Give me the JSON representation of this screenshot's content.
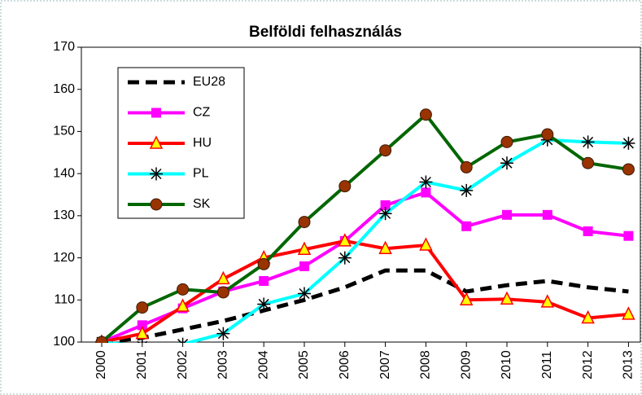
{
  "chart_data": {
    "type": "line",
    "title": "Belföldi felhasználás",
    "categories": [
      "2000",
      "2001",
      "2002",
      "2003",
      "2004",
      "2005",
      "2006",
      "2007",
      "2008",
      "2009",
      "2010",
      "2011",
      "2012",
      "2013"
    ],
    "ylim": [
      100,
      170
    ],
    "yticks": [
      100,
      110,
      120,
      130,
      140,
      150,
      160,
      170
    ],
    "legend": "upper left",
    "series": [
      {
        "name": "EU28",
        "color": "#000000",
        "dash": true,
        "marker": "none",
        "values": [
          100,
          101,
          103,
          105,
          107.5,
          110,
          113,
          117,
          117,
          112,
          113.5,
          114.5,
          113,
          112
        ]
      },
      {
        "name": "CZ",
        "color": "#ff00ff",
        "marker": "square",
        "marker_fill": "#ff00ff",
        "values": [
          100,
          104,
          108,
          112,
          114.5,
          118,
          124,
          132.5,
          135.5,
          127.5,
          130.2,
          130.2,
          126.3,
          125.2
        ]
      },
      {
        "name": "HU",
        "color": "#ff0000",
        "marker": "triangle",
        "marker_fill": "#ffff00",
        "values": [
          100,
          102,
          108.5,
          115,
          120,
          122,
          124,
          122.2,
          123,
          110,
          110.2,
          109.5,
          105.7,
          106.6
        ]
      },
      {
        "name": "PL",
        "color": "#00ffff",
        "marker": "star",
        "marker_fill": "#000000",
        "values": [
          100,
          99,
          99.5,
          102,
          109,
          111.5,
          120,
          130.5,
          138,
          136,
          142.5,
          148,
          147.5,
          147.2
        ]
      },
      {
        "name": "SK",
        "color": "#006600",
        "marker": "circle",
        "marker_fill": "#993300",
        "values": [
          100,
          108.2,
          112.5,
          111.8,
          118.5,
          128.5,
          137,
          145.5,
          154,
          141.5,
          147.5,
          149.3,
          142.5,
          141
        ]
      }
    ]
  }
}
